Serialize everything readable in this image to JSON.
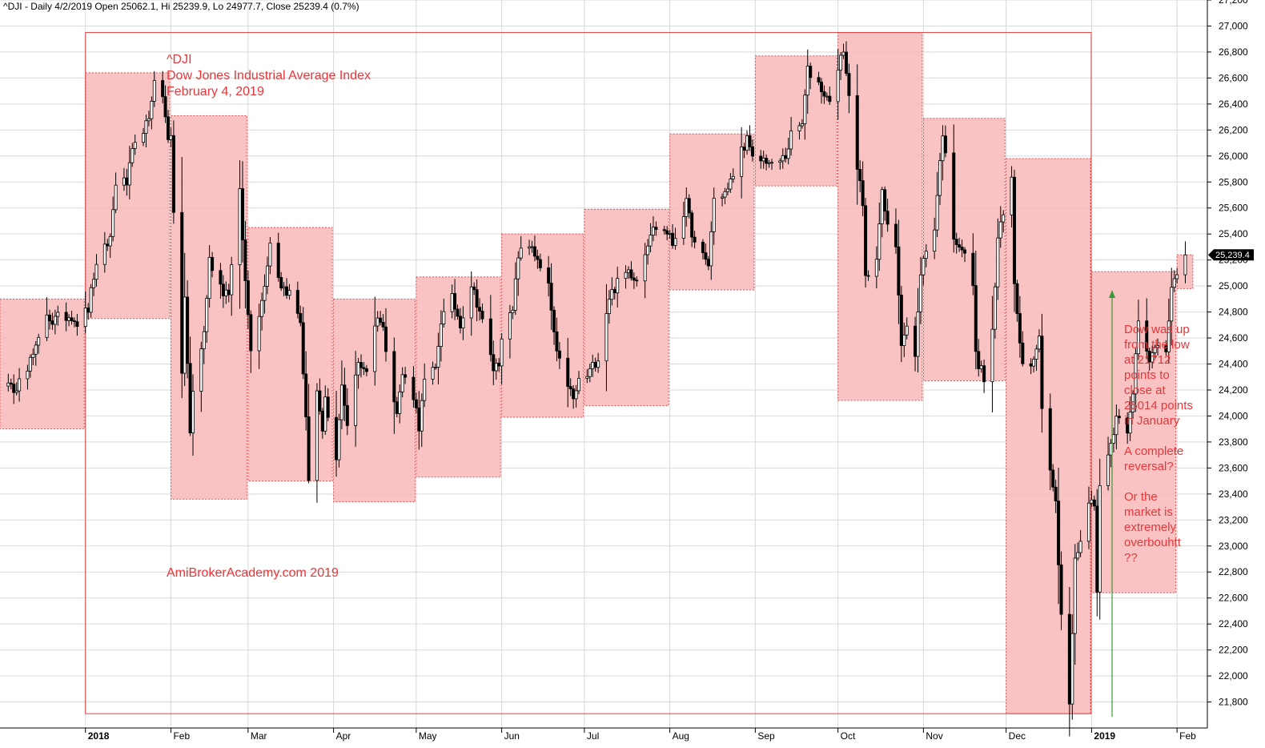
{
  "header": "^DJI - Daily 4/2/2019 Open 25062.1, Hi 25239.9, Lo 24977.7, Close 25239.4 (0.7%)",
  "last_price_label": "25,239.4",
  "annotations": {
    "title_lines": [
      "^DJI",
      "Dow Jones Industrial Average Index",
      "February 4, 2019"
    ],
    "watermark": "AmiBrokerAcademy.com  2019",
    "side_lines": [
      "Dow was up",
      "from the low",
      "at 21712",
      "points to",
      "close at",
      "25014 points",
      "in January",
      "",
      "A complete",
      "reversal?",
      "",
      "Or the",
      "market is",
      "extremely",
      "overbouhtt",
      "??"
    ]
  },
  "colors": {
    "box_fill": "#f9b8b8",
    "box_border": "#e05050",
    "frame": "#e04040",
    "arrow": "#3a9a3a",
    "candle": "#000000",
    "grid": "#d9d9d9",
    "price_tag": "#000000"
  },
  "chart_data": {
    "type": "candlestick",
    "title": "^DJI - Daily",
    "ylim": [
      21600,
      27200
    ],
    "y_ticks": [
      21800,
      22000,
      22200,
      22400,
      22600,
      22800,
      23000,
      23200,
      23400,
      23600,
      23800,
      24000,
      24200,
      24400,
      24600,
      24800,
      25000,
      25200,
      25400,
      25600,
      25800,
      26000,
      26200,
      26400,
      26600,
      26800,
      27000,
      27200
    ],
    "y_tick_labels": [
      "21,800",
      "22,000",
      "22,200",
      "22,400",
      "22,600",
      "22,800",
      "23,000",
      "23,200",
      "23,400",
      "23,600",
      "23,800",
      "24,000",
      "24,200",
      "24,400",
      "24,600",
      "24,800",
      "25,000",
      "25,200",
      "25,400",
      "25,600",
      "25,800",
      "26,000",
      "26,200",
      "26,400",
      "26,600",
      "26,800",
      "27,000",
      "27,200"
    ],
    "x_start": "2017-12-01",
    "x_end": "2019-02-12",
    "month_labels": [
      {
        "date": "2018-01-01",
        "label": "2018",
        "bold": true
      },
      {
        "date": "2018-02-01",
        "label": "Feb"
      },
      {
        "date": "2018-03-01",
        "label": "Mar"
      },
      {
        "date": "2018-04-01",
        "label": "Apr"
      },
      {
        "date": "2018-05-01",
        "label": "May"
      },
      {
        "date": "2018-06-01",
        "label": "Jun"
      },
      {
        "date": "2018-07-01",
        "label": "Jul"
      },
      {
        "date": "2018-08-01",
        "label": "Aug"
      },
      {
        "date": "2018-09-01",
        "label": "Sep"
      },
      {
        "date": "2018-10-01",
        "label": "Oct"
      },
      {
        "date": "2018-11-01",
        "label": "Nov"
      },
      {
        "date": "2018-12-01",
        "label": "Dec"
      },
      {
        "date": "2019-01-01",
        "label": "2019",
        "bold": true
      },
      {
        "date": "2019-02-01",
        "label": "Feb"
      }
    ],
    "monthly_ranges": [
      {
        "month": "2017-12",
        "high": 24900,
        "low": 23900
      },
      {
        "month": "2018-01",
        "high": 26640,
        "low": 24750
      },
      {
        "month": "2018-02",
        "high": 26310,
        "low": 23360
      },
      {
        "month": "2018-03",
        "high": 25450,
        "low": 23500
      },
      {
        "month": "2018-04",
        "high": 24900,
        "low": 23340
      },
      {
        "month": "2018-05",
        "high": 25070,
        "low": 23530
      },
      {
        "month": "2018-06",
        "high": 25400,
        "low": 23990
      },
      {
        "month": "2018-07",
        "high": 25590,
        "low": 24080
      },
      {
        "month": "2018-08",
        "high": 26170,
        "low": 24970
      },
      {
        "month": "2018-09",
        "high": 26770,
        "low": 25770
      },
      {
        "month": "2018-10",
        "high": 26950,
        "low": 24120
      },
      {
        "month": "2018-11",
        "high": 26290,
        "low": 24270
      },
      {
        "month": "2018-12",
        "high": 25980,
        "low": 21710
      },
      {
        "month": "2019-01",
        "high": 25110,
        "low": 22640
      },
      {
        "month": "2019-02",
        "high": 25240,
        "low": 24980
      }
    ],
    "range_box": {
      "start": "2018-01-01",
      "end": "2018-12-31",
      "high": 26950,
      "low": 21710
    },
    "close_path": [
      [
        "2017-12-01",
        24230
      ],
      [
        "2017-12-04",
        24290
      ],
      [
        "2017-12-06",
        24140
      ],
      [
        "2017-12-08",
        24330
      ],
      [
        "2017-12-11",
        24386
      ],
      [
        "2017-12-14",
        24508
      ],
      [
        "2017-12-18",
        24792
      ],
      [
        "2017-12-20",
        24726
      ],
      [
        "2017-12-22",
        24754
      ],
      [
        "2017-12-27",
        24774
      ],
      [
        "2017-12-29",
        24719
      ],
      [
        "2018-01-02",
        24824
      ],
      [
        "2018-01-04",
        25075
      ],
      [
        "2018-01-08",
        25283
      ],
      [
        "2018-01-10",
        25369
      ],
      [
        "2018-01-12",
        25803
      ],
      [
        "2018-01-16",
        25792
      ],
      [
        "2018-01-18",
        26017
      ],
      [
        "2018-01-22",
        26214
      ],
      [
        "2018-01-24",
        26252
      ],
      [
        "2018-01-26",
        26616
      ],
      [
        "2018-01-29",
        26439
      ],
      [
        "2018-01-31",
        26149
      ],
      [
        "2018-02-01",
        26186
      ],
      [
        "2018-02-02",
        25521
      ],
      [
        "2018-02-05",
        24346
      ],
      [
        "2018-02-06",
        24912
      ],
      [
        "2018-02-08",
        23860
      ],
      [
        "2018-02-09",
        24190
      ],
      [
        "2018-02-13",
        24640
      ],
      [
        "2018-02-15",
        25200
      ],
      [
        "2018-02-20",
        24964
      ],
      [
        "2018-02-22",
        24962
      ],
      [
        "2018-02-26",
        25709
      ],
      [
        "2018-02-28",
        25029
      ],
      [
        "2018-03-02",
        24538
      ],
      [
        "2018-03-06",
        24884
      ],
      [
        "2018-03-09",
        25336
      ],
      [
        "2018-03-13",
        25008
      ],
      [
        "2018-03-16",
        24946
      ],
      [
        "2018-03-20",
        24727
      ],
      [
        "2018-03-22",
        23958
      ],
      [
        "2018-03-23",
        23533
      ],
      [
        "2018-03-26",
        24202
      ],
      [
        "2018-03-28",
        23849
      ],
      [
        "2018-03-29",
        24103
      ],
      [
        "2018-04-02",
        23644
      ],
      [
        "2018-04-04",
        24264
      ],
      [
        "2018-04-06",
        23933
      ],
      [
        "2018-04-10",
        24408
      ],
      [
        "2018-04-13",
        24360
      ],
      [
        "2018-04-17",
        24786
      ],
      [
        "2018-04-19",
        24665
      ],
      [
        "2018-04-24",
        24024
      ],
      [
        "2018-04-26",
        24322
      ],
      [
        "2018-04-30",
        24163
      ],
      [
        "2018-05-02",
        23925
      ],
      [
        "2018-05-04",
        24262
      ],
      [
        "2018-05-08",
        24360
      ],
      [
        "2018-05-10",
        24739
      ],
      [
        "2018-05-14",
        24899
      ],
      [
        "2018-05-17",
        24713
      ],
      [
        "2018-05-21",
        25013
      ],
      [
        "2018-05-24",
        24811
      ],
      [
        "2018-05-29",
        24362
      ],
      [
        "2018-05-31",
        24416
      ],
      [
        "2018-06-01",
        24635
      ],
      [
        "2018-06-05",
        24799
      ],
      [
        "2018-06-07",
        25241
      ],
      [
        "2018-06-12",
        25320
      ],
      [
        "2018-06-14",
        25175
      ],
      [
        "2018-06-18",
        24987
      ],
      [
        "2018-06-21",
        24461
      ],
      [
        "2018-06-25",
        24252
      ],
      [
        "2018-06-27",
        24117
      ],
      [
        "2018-06-29",
        24271
      ],
      [
        "2018-07-02",
        24307
      ],
      [
        "2018-07-06",
        24456
      ],
      [
        "2018-07-10",
        24919
      ],
      [
        "2018-07-13",
        25019
      ],
      [
        "2018-07-17",
        25120
      ],
      [
        "2018-07-20",
        25058
      ],
      [
        "2018-07-25",
        25414
      ],
      [
        "2018-07-27",
        25451
      ],
      [
        "2018-07-31",
        25415
      ],
      [
        "2018-08-02",
        25326
      ],
      [
        "2018-08-07",
        25629
      ],
      [
        "2018-08-10",
        25313
      ],
      [
        "2018-08-15",
        25162
      ],
      [
        "2018-08-17",
        25669
      ],
      [
        "2018-08-22",
        25733
      ],
      [
        "2018-08-27",
        26049
      ],
      [
        "2018-08-29",
        26124
      ],
      [
        "2018-08-31",
        25964
      ],
      [
        "2018-09-05",
        25974
      ],
      [
        "2018-09-07",
        25916
      ],
      [
        "2018-09-12",
        25998
      ],
      [
        "2018-09-14",
        26154
      ],
      [
        "2018-09-18",
        26246
      ],
      [
        "2018-09-20",
        26656
      ],
      [
        "2018-09-24",
        26562
      ],
      [
        "2018-09-27",
        26439
      ],
      [
        "2018-09-28",
        26458
      ],
      [
        "2018-10-01",
        26651
      ],
      [
        "2018-10-03",
        26828
      ],
      [
        "2018-10-05",
        26447
      ],
      [
        "2018-10-10",
        25598
      ],
      [
        "2018-10-11",
        25052
      ],
      [
        "2018-10-15",
        25250
      ],
      [
        "2018-10-17",
        25706
      ],
      [
        "2018-10-19",
        25444
      ],
      [
        "2018-10-22",
        25317
      ],
      [
        "2018-10-24",
        24583
      ],
      [
        "2018-10-26",
        24688
      ],
      [
        "2018-10-29",
        24442
      ],
      [
        "2018-10-31",
        25116
      ],
      [
        "2018-11-02",
        25270
      ],
      [
        "2018-11-05",
        25461
      ],
      [
        "2018-11-08",
        26191
      ],
      [
        "2018-11-12",
        25387
      ],
      [
        "2018-11-15",
        25289
      ],
      [
        "2018-11-19",
        25017
      ],
      [
        "2018-11-20",
        24465
      ],
      [
        "2018-11-23",
        24286
      ],
      [
        "2018-11-26",
        24640
      ],
      [
        "2018-11-28",
        25366
      ],
      [
        "2018-11-30",
        25538
      ],
      [
        "2018-12-03",
        25826
      ],
      [
        "2018-12-04",
        25027
      ],
      [
        "2018-12-07",
        24389
      ],
      [
        "2018-12-10",
        24423
      ],
      [
        "2018-12-13",
        24597
      ],
      [
        "2018-12-14",
        24100
      ],
      [
        "2018-12-17",
        23592
      ],
      [
        "2018-12-19",
        23324
      ],
      [
        "2018-12-20",
        22859
      ],
      [
        "2018-12-21",
        22445
      ],
      [
        "2018-12-24",
        21792
      ],
      [
        "2018-12-26",
        22878
      ],
      [
        "2018-12-28",
        23062
      ],
      [
        "2018-12-31",
        23327
      ],
      [
        "2019-01-02",
        23346
      ],
      [
        "2019-01-03",
        22686
      ],
      [
        "2019-01-04",
        23433
      ],
      [
        "2019-01-08",
        23787
      ],
      [
        "2019-01-10",
        24001
      ],
      [
        "2019-01-14",
        23910
      ],
      [
        "2019-01-16",
        24207
      ],
      [
        "2019-01-18",
        24706
      ],
      [
        "2019-01-22",
        24404
      ],
      [
        "2019-01-24",
        24553
      ],
      [
        "2019-01-28",
        24528
      ],
      [
        "2019-01-30",
        25014
      ],
      [
        "2019-02-01",
        25063
      ],
      [
        "2019-02-04",
        25239
      ]
    ]
  }
}
